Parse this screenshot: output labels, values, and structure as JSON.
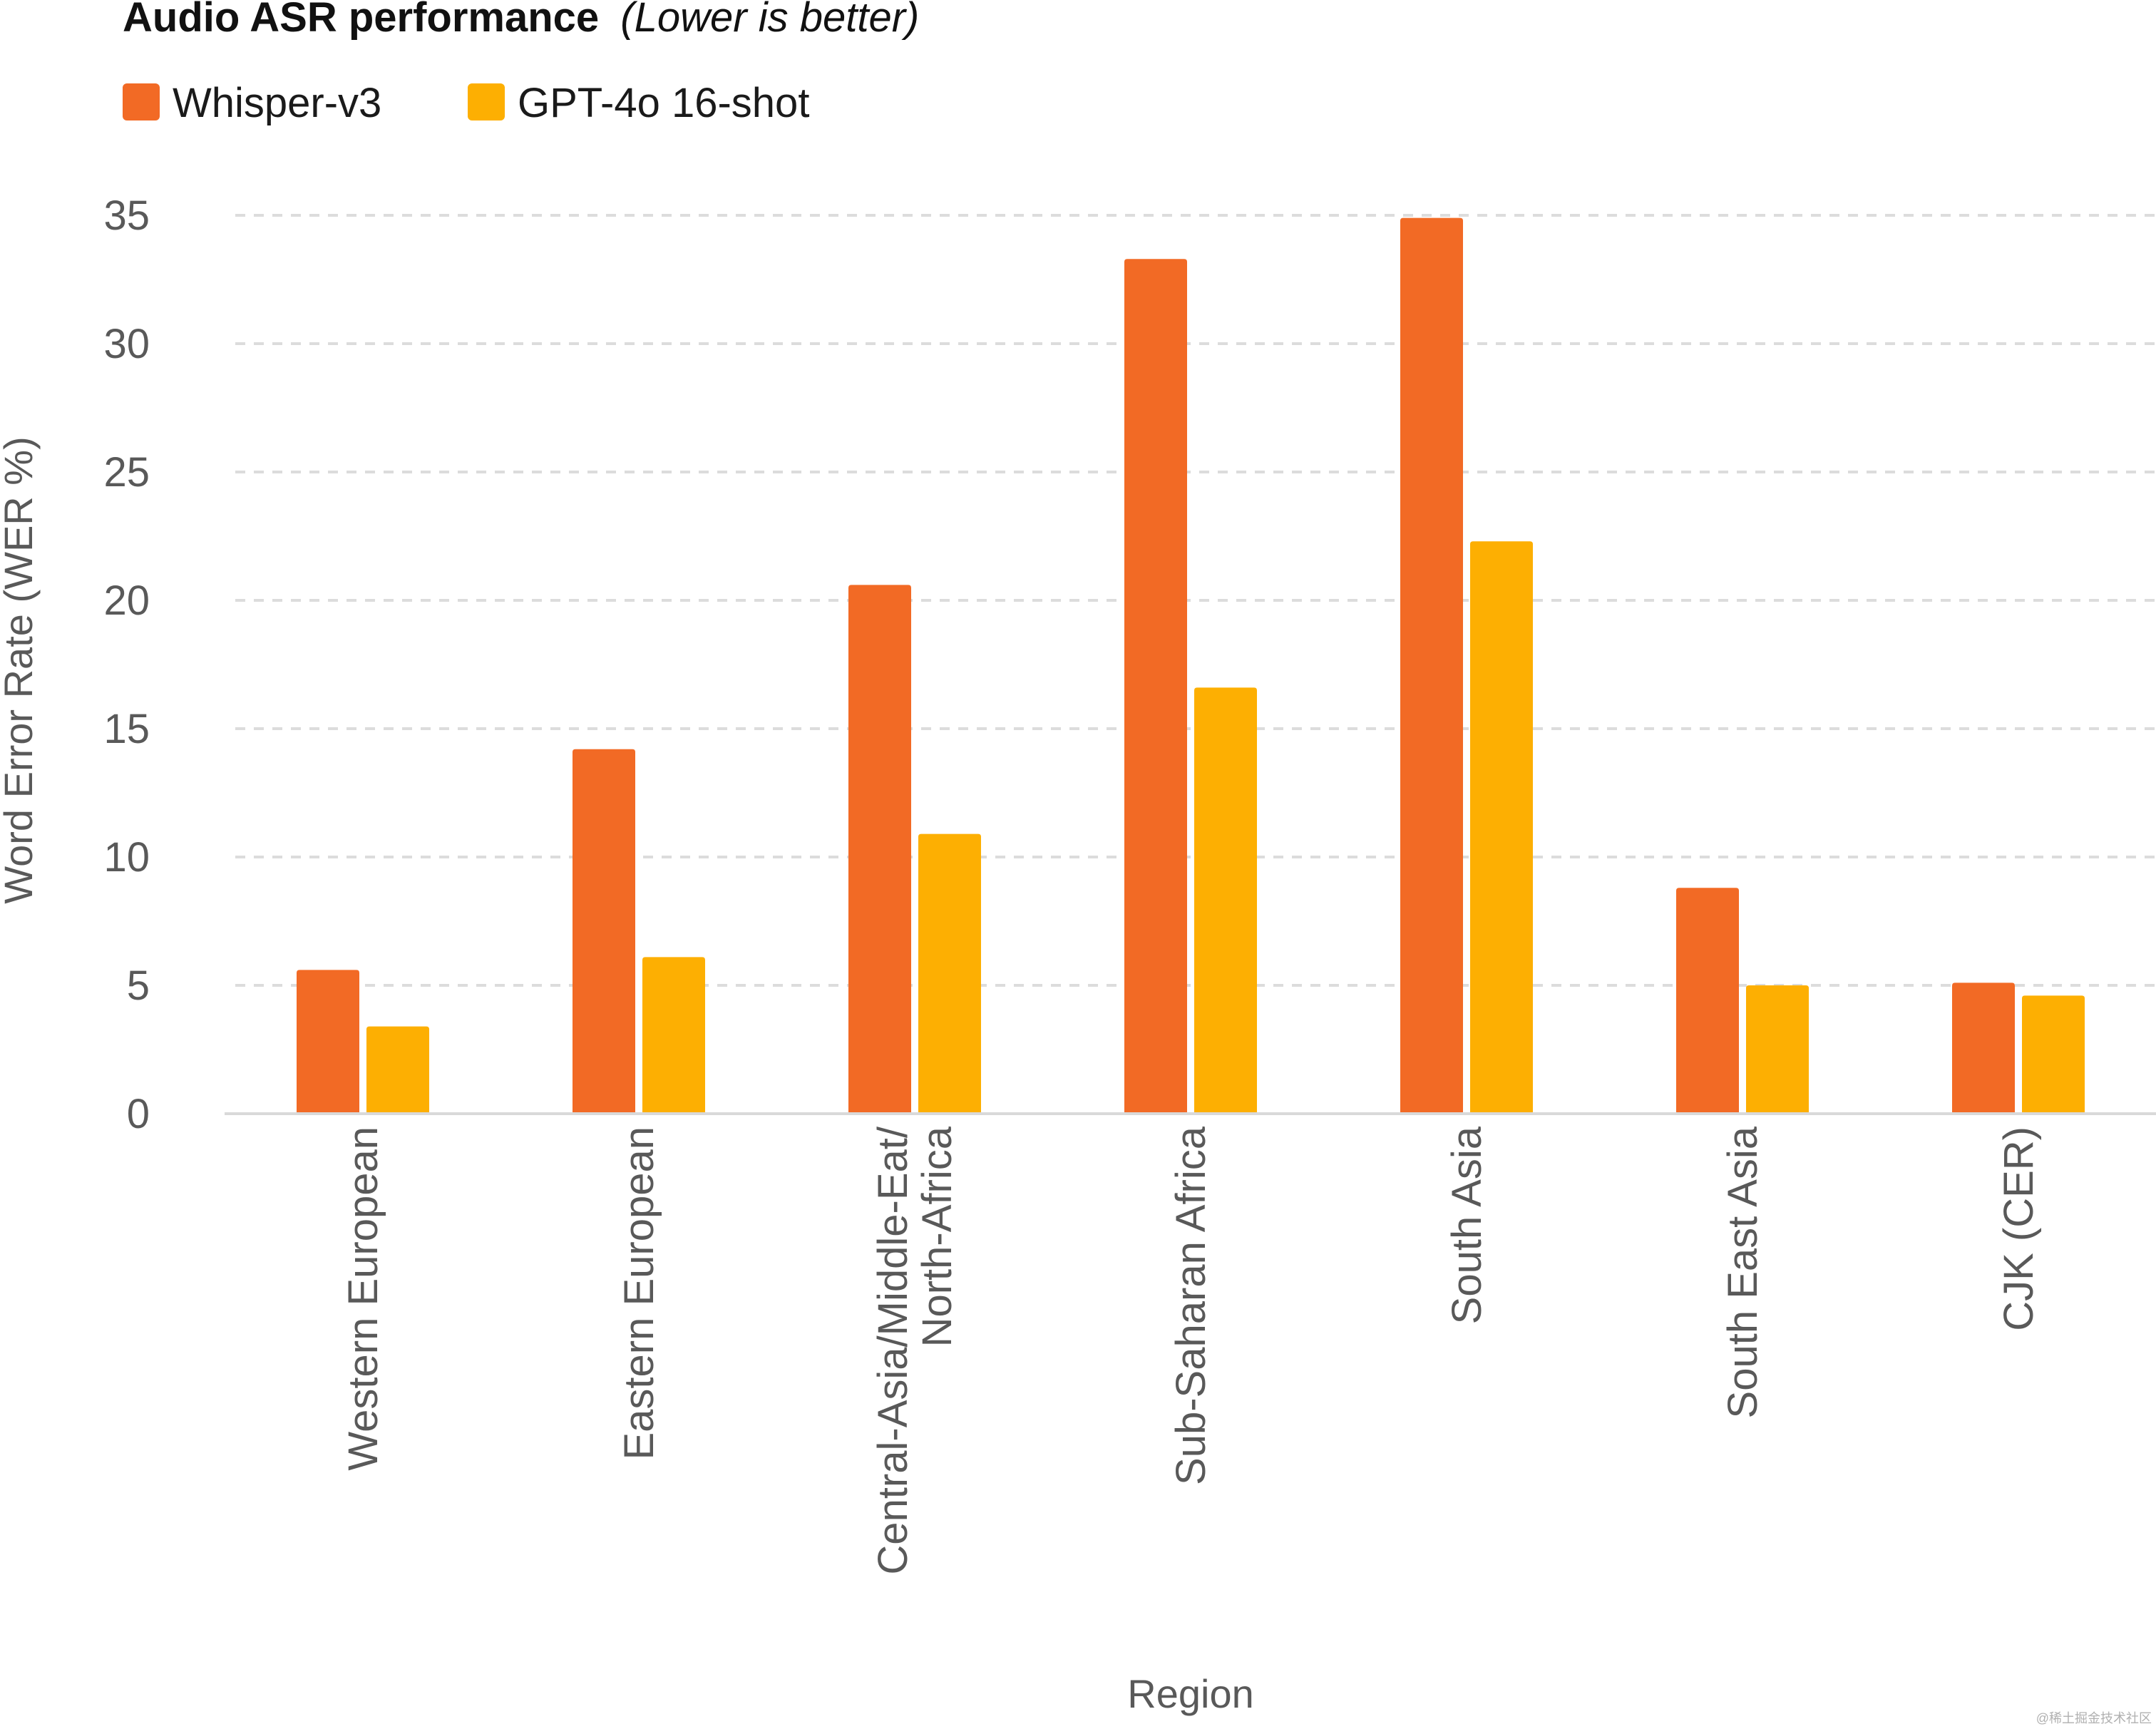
{
  "title": {
    "main": "Audio ASR performance",
    "note": "(Lower is better)"
  },
  "watermark": "@稀土掘金技术社区",
  "chart_data": {
    "type": "bar",
    "categories": [
      "Western European",
      "Eastern European",
      "Central-Asia/Middle-Eat/\nNorth-Africa",
      "Sub-Saharan Africa",
      "South Asia",
      "South East Asia",
      "CJK (CER)"
    ],
    "series": [
      {
        "name": "Whisper-v3",
        "color": "#f26a25",
        "values": [
          5.6,
          14.2,
          20.6,
          33.3,
          34.9,
          8.8,
          5.1
        ]
      },
      {
        "name": "GPT-4o 16-shot",
        "color": "#fdaf02",
        "values": [
          3.4,
          6.1,
          10.9,
          16.6,
          22.3,
          5.0,
          4.6
        ]
      }
    ],
    "xlabel": "Region",
    "ylabel": "Word Error Rate (WER %)",
    "ylim": [
      0,
      35
    ],
    "yticks": [
      0,
      5,
      10,
      15,
      20,
      25,
      30,
      35
    ],
    "grid": true,
    "legend": "top-left"
  }
}
